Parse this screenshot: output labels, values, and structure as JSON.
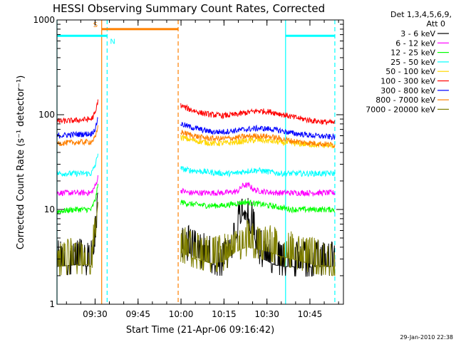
{
  "chart_data": {
    "type": "line",
    "title": "HESSI Observing Summary Count Rates, Corrected",
    "xlabel": "Start Time (21-Apr-06 09:16:42)",
    "ylabel": "Corrected Count Rate (s⁻¹ detector⁻¹)",
    "x_unit": "minutes after 09:16:42 UT",
    "xlim": [
      0,
      100
    ],
    "ylim": [
      1,
      1000
    ],
    "yscale": "log",
    "x_ticks": [
      {
        "label": "09:30",
        "value": 13.3
      },
      {
        "label": "09:45",
        "value": 28.3
      },
      {
        "label": "10:00",
        "value": 43.3
      },
      {
        "label": "10:15",
        "value": 58.3
      },
      {
        "label": "10:30",
        "value": 73.3
      },
      {
        "label": "10:45",
        "value": 88.3
      }
    ],
    "y_ticks": [
      {
        "label": "1",
        "value": 1
      },
      {
        "label": "10",
        "value": 10
      },
      {
        "label": "100",
        "value": 100
      },
      {
        "label": "1000",
        "value": 1000
      }
    ],
    "legend": {
      "header": [
        "Det 1,3,4,5,6,9,",
        "Att 0"
      ],
      "position": "right"
    },
    "series": [
      {
        "name": "3 - 6 keV",
        "color": "#000000",
        "segments": [
          {
            "x": [
              0,
              6,
              12,
              13.2,
              14.3
            ],
            "y": [
              2.5,
              2.6,
              2.5,
              4,
              9
            ]
          },
          {
            "x": [
              43.2,
              48,
              56,
              58,
              60,
              62,
              64,
              65.5,
              67,
              69,
              70,
              72,
              74,
              76,
              79,
              82,
              85,
              90,
              97
            ],
            "y": [
              4,
              3.2,
              2.5,
              2.5,
              3.2,
              4.5,
              7,
              10,
              8,
              5,
              3.5,
              3,
              2.8,
              2.6,
              2.5,
              2.5,
              2.4,
              2.5,
              2.5
            ]
          }
        ]
      },
      {
        "name": "6 - 12 keV",
        "color": "#ff00ff",
        "segments": [
          {
            "x": [
              0,
              6,
              12,
              13.5,
              14.3
            ],
            "y": [
              15,
              15,
              15,
              18,
              22
            ]
          },
          {
            "x": [
              43.2,
              46,
              52,
              58,
              63,
              65,
              67,
              69,
              72,
              76,
              80,
              85,
              90,
              97
            ],
            "y": [
              16,
              15,
              15,
              15,
              15.5,
              18,
              18,
              16,
              15.5,
              15,
              15,
              15,
              15,
              15
            ]
          }
        ]
      },
      {
        "name": "12 - 25 keV",
        "color": "#00ff00",
        "segments": [
          {
            "x": [
              0,
              6,
              12,
              13.5,
              14.3
            ],
            "y": [
              9.5,
              10,
              10,
              13,
              18
            ]
          },
          {
            "x": [
              43.2,
              46,
              52,
              58,
              62,
              66,
              70,
              74,
              78,
              82,
              86,
              90,
              97
            ],
            "y": [
              12,
              11.5,
              11,
              11,
              11.5,
              12,
              11.5,
              11,
              10.5,
              10,
              10,
              10,
              10
            ]
          }
        ]
      },
      {
        "name": "25 - 50 keV",
        "color": "#00ffff",
        "segments": [
          {
            "x": [
              0,
              6,
              12,
              13.5,
              14.3
            ],
            "y": [
              24,
              24,
              24,
              30,
              40
            ]
          },
          {
            "x": [
              43.2,
              46,
              52,
              58,
              62,
              66,
              70,
              74,
              78,
              82,
              86,
              90,
              97
            ],
            "y": [
              27,
              26,
              25,
              24,
              24,
              25.5,
              26,
              25,
              24,
              24,
              24,
              24,
              24
            ]
          }
        ]
      },
      {
        "name": "50 - 100 keV",
        "color": "#ffd700",
        "segments": [
          {
            "x": [
              43.2,
              46,
              50,
              54,
              58,
              62,
              66,
              70,
              74,
              78,
              82,
              86,
              90,
              97
            ],
            "y": [
              58,
              55,
              52,
              50,
              50,
              51,
              53,
              54,
              53,
              51,
              50,
              49,
              48,
              47
            ]
          }
        ]
      },
      {
        "name": "100 - 300 keV",
        "color": "#ff0000",
        "segments": [
          {
            "x": [
              0,
              6,
              12,
              13.5,
              14.3
            ],
            "y": [
              85,
              87,
              90,
              105,
              145
            ]
          },
          {
            "x": [
              43.2,
              46,
              50,
              54,
              58,
              62,
              66,
              70,
              74,
              78,
              82,
              86,
              90,
              97
            ],
            "y": [
              125,
              115,
              105,
              100,
              98,
              100,
              105,
              110,
              108,
              102,
              95,
              90,
              86,
              82
            ]
          }
        ]
      },
      {
        "name": "300 - 800 keV",
        "color": "#0000ff",
        "segments": [
          {
            "x": [
              0,
              6,
              12,
              13.5,
              14.3
            ],
            "y": [
              60,
              62,
              63,
              72,
              95
            ]
          },
          {
            "x": [
              43.2,
              46,
              50,
              54,
              58,
              62,
              66,
              70,
              74,
              78,
              82,
              86,
              90,
              97
            ],
            "y": [
              80,
              75,
              70,
              66,
              66,
              68,
              70,
              72,
              71,
              68,
              64,
              62,
              60,
              58
            ]
          }
        ]
      },
      {
        "name": "800 - 7000 keV",
        "color": "#ff8000",
        "segments": [
          {
            "x": [
              0,
              6,
              12,
              13.5,
              14.3
            ],
            "y": [
              50,
              51,
              52,
              58,
              75
            ]
          },
          {
            "x": [
              43.2,
              46,
              50,
              54,
              58,
              62,
              66,
              70,
              74,
              78,
              82,
              86,
              90,
              97
            ],
            "y": [
              66,
              62,
              58,
              56,
              56,
              57,
              59,
              60,
              59,
              56,
              53,
              51,
              50,
              48
            ]
          }
        ]
      },
      {
        "name": "7000 - 20000 keV",
        "color": "#808000",
        "segments": [
          {
            "x": [
              0,
              6,
              12,
              13.2,
              14.3
            ],
            "y": [
              2.5,
              2.6,
              2.6,
              5,
              12
            ]
          },
          {
            "x": [
              43.2,
              48,
              54,
              58,
              62,
              66,
              70,
              74,
              78,
              82,
              86,
              90,
              97
            ],
            "y": [
              3.5,
              3,
              2.7,
              2.8,
              3.5,
              4,
              3.8,
              3.6,
              3.2,
              3,
              2.8,
              2.6,
              2.5
            ]
          }
        ]
      }
    ],
    "attenuator_bars": [
      {
        "label": "S",
        "x_start": 15.6,
        "x_end": 42.3,
        "y": 800,
        "color": "#ff8000"
      },
      {
        "label": "N",
        "x_start": 0,
        "x_end": 17.5,
        "y": 680,
        "color": "#00ffff"
      },
      {
        "label": "",
        "x_start": 79.8,
        "x_end": 97.0,
        "y": 680,
        "color": "#00ffff"
      }
    ],
    "vertical_markers": [
      {
        "x": 0,
        "color": "#00ffff",
        "style": "solid"
      },
      {
        "x": 15.6,
        "color": "#ff8000",
        "style": "solid"
      },
      {
        "x": 17.5,
        "color": "#00ffff",
        "style": "dashed"
      },
      {
        "x": 42.3,
        "color": "#ff8000",
        "style": "dashed"
      },
      {
        "x": 79.8,
        "color": "#00ffff",
        "style": "solid"
      },
      {
        "x": 97.0,
        "color": "#00ffff",
        "style": "dashed"
      }
    ]
  },
  "footer": {
    "timestamp": "29-Jan-2010 22:38"
  }
}
